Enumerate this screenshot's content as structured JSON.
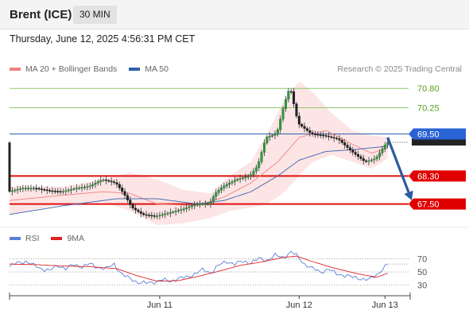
{
  "header": {
    "title": "Brent (ICE)",
    "timeframe": "30 MIN"
  },
  "date_line": "Thursday, June 12, 2025 4:56:31 PM CET",
  "legend": {
    "bollinger_label": "MA 20 + Bollinger Bands",
    "bollinger_color": "#f28080",
    "ma50_label": "MA 50",
    "ma50_color": "#2f5fa8",
    "rsi_label": "RSI",
    "rsi_color": "#5a7fd6",
    "rsi_ma_label": "9MA",
    "rsi_ma_color": "#e02020"
  },
  "research_note": "Research © 2025 Trading Central",
  "chart_data": [
    {
      "type": "candlestick",
      "title": "Brent (ICE)",
      "ylim": [
        66.9,
        71.1
      ],
      "x_ticks": [
        {
          "label": "Jun 11",
          "index": 56
        },
        {
          "label": "Jun 12",
          "index": 108
        },
        {
          "label": "Jun 13",
          "index": 140
        }
      ],
      "levels": [
        {
          "value": 70.8,
          "label": "70.80",
          "kind": "resistance"
        },
        {
          "value": 70.25,
          "label": "70.25",
          "kind": "resistance"
        },
        {
          "value": 69.5,
          "label": "69.50",
          "kind": "pivot"
        },
        {
          "value": 68.3,
          "label": "68.30",
          "kind": "support"
        },
        {
          "value": 67.5,
          "label": "67.50",
          "kind": "support"
        }
      ],
      "last_price": 69.26,
      "arrow": {
        "from": [
          141,
          69.4
        ],
        "to": [
          150,
          67.6
        ],
        "direction": "down"
      },
      "anchors": [
        [
          0,
          67.85
        ],
        [
          5,
          67.95
        ],
        [
          10,
          67.95
        ],
        [
          15,
          67.88
        ],
        [
          20,
          67.85
        ],
        [
          25,
          67.95
        ],
        [
          30,
          68.0
        ],
        [
          35,
          68.2
        ],
        [
          40,
          68.1
        ],
        [
          43,
          67.8
        ],
        [
          46,
          67.4
        ],
        [
          50,
          67.2
        ],
        [
          55,
          67.15
        ],
        [
          60,
          67.25
        ],
        [
          65,
          67.35
        ],
        [
          70,
          67.5
        ],
        [
          75,
          67.5
        ],
        [
          77,
          67.8
        ],
        [
          80,
          68.0
        ],
        [
          85,
          68.2
        ],
        [
          90,
          68.3
        ],
        [
          93,
          68.6
        ],
        [
          96,
          69.4
        ],
        [
          100,
          69.5
        ],
        [
          103,
          70.4
        ],
        [
          105,
          70.85
        ],
        [
          108,
          69.8
        ],
        [
          113,
          69.5
        ],
        [
          118,
          69.45
        ],
        [
          123,
          69.35
        ],
        [
          128,
          69.0
        ],
        [
          133,
          68.7
        ],
        [
          137,
          68.8
        ],
        [
          141,
          69.25
        ]
      ],
      "bb_mid": [
        [
          0,
          67.6
        ],
        [
          20,
          67.75
        ],
        [
          35,
          67.85
        ],
        [
          45,
          67.8
        ],
        [
          55,
          67.5
        ],
        [
          70,
          67.45
        ],
        [
          80,
          67.7
        ],
        [
          90,
          68.1
        ],
        [
          100,
          68.7
        ],
        [
          108,
          69.4
        ],
        [
          118,
          69.6
        ],
        [
          128,
          69.2
        ],
        [
          135,
          68.95
        ],
        [
          141,
          69.1
        ]
      ],
      "bb_upper": [
        [
          0,
          68.0
        ],
        [
          20,
          68.0
        ],
        [
          35,
          68.2
        ],
        [
          45,
          68.4
        ],
        [
          55,
          68.2
        ],
        [
          65,
          67.9
        ],
        [
          75,
          67.8
        ],
        [
          82,
          68.3
        ],
        [
          90,
          68.7
        ],
        [
          96,
          69.5
        ],
        [
          102,
          70.4
        ],
        [
          108,
          71.0
        ],
        [
          113,
          70.7
        ],
        [
          120,
          70.1
        ],
        [
          128,
          69.6
        ],
        [
          135,
          69.45
        ],
        [
          141,
          69.4
        ]
      ],
      "bb_lower": [
        [
          0,
          67.2
        ],
        [
          20,
          67.5
        ],
        [
          35,
          67.55
        ],
        [
          45,
          67.3
        ],
        [
          55,
          66.9
        ],
        [
          65,
          66.95
        ],
        [
          75,
          67.1
        ],
        [
          82,
          67.3
        ],
        [
          90,
          67.4
        ],
        [
          96,
          67.5
        ],
        [
          102,
          67.8
        ],
        [
          108,
          68.3
        ],
        [
          113,
          68.7
        ],
        [
          120,
          68.9
        ],
        [
          128,
          68.7
        ],
        [
          135,
          68.5
        ],
        [
          141,
          68.8
        ]
      ],
      "ma50": [
        [
          0,
          67.2
        ],
        [
          20,
          67.45
        ],
        [
          40,
          67.65
        ],
        [
          55,
          67.65
        ],
        [
          70,
          67.5
        ],
        [
          80,
          67.6
        ],
        [
          90,
          67.85
        ],
        [
          100,
          68.3
        ],
        [
          108,
          68.75
        ],
        [
          118,
          69.0
        ],
        [
          128,
          69.05
        ],
        [
          141,
          69.15
        ]
      ]
    },
    {
      "type": "line",
      "title": "RSI",
      "ylim": [
        20,
        85
      ],
      "levels": [
        {
          "value": 70,
          "label": "70"
        },
        {
          "value": 50,
          "label": "50"
        },
        {
          "value": 30,
          "label": "30"
        }
      ],
      "last_value": 62,
      "series": [
        {
          "name": "RSI",
          "anchors": [
            [
              0,
              58
            ],
            [
              3,
              64
            ],
            [
              6,
              66
            ],
            [
              9,
              60
            ],
            [
              12,
              55
            ],
            [
              15,
              52
            ],
            [
              18,
              60
            ],
            [
              21,
              55
            ],
            [
              24,
              61
            ],
            [
              27,
              58
            ],
            [
              30,
              62
            ],
            [
              33,
              57
            ],
            [
              36,
              55
            ],
            [
              39,
              62
            ],
            [
              42,
              46
            ],
            [
              45,
              40
            ],
            [
              48,
              34
            ],
            [
              51,
              33
            ],
            [
              54,
              35
            ],
            [
              57,
              38
            ],
            [
              60,
              36
            ],
            [
              63,
              40
            ],
            [
              66,
              42
            ],
            [
              69,
              47
            ],
            [
              72,
              53
            ],
            [
              75,
              49
            ],
            [
              78,
              60
            ],
            [
              81,
              66
            ],
            [
              84,
              62
            ],
            [
              87,
              66
            ],
            [
              90,
              64
            ],
            [
              93,
              70
            ],
            [
              96,
              68
            ],
            [
              99,
              75
            ],
            [
              102,
              72
            ],
            [
              105,
              80
            ],
            [
              107,
              75
            ],
            [
              110,
              62
            ],
            [
              113,
              55
            ],
            [
              116,
              50
            ],
            [
              119,
              54
            ],
            [
              122,
              47
            ],
            [
              125,
              45
            ],
            [
              128,
              42
            ],
            [
              131,
              40
            ],
            [
              134,
              38
            ],
            [
              137,
              46
            ],
            [
              140,
              58
            ],
            [
              141,
              62
            ]
          ]
        },
        {
          "name": "9MA",
          "anchors": [
            [
              0,
              62
            ],
            [
              10,
              61
            ],
            [
              20,
              59
            ],
            [
              30,
              58
            ],
            [
              40,
              55
            ],
            [
              47,
              45
            ],
            [
              55,
              36
            ],
            [
              63,
              37
            ],
            [
              70,
              43
            ],
            [
              78,
              51
            ],
            [
              86,
              60
            ],
            [
              94,
              65
            ],
            [
              102,
              72
            ],
            [
              107,
              74
            ],
            [
              112,
              67
            ],
            [
              120,
              57
            ],
            [
              130,
              47
            ],
            [
              137,
              42
            ],
            [
              141,
              48
            ]
          ]
        }
      ]
    }
  ]
}
